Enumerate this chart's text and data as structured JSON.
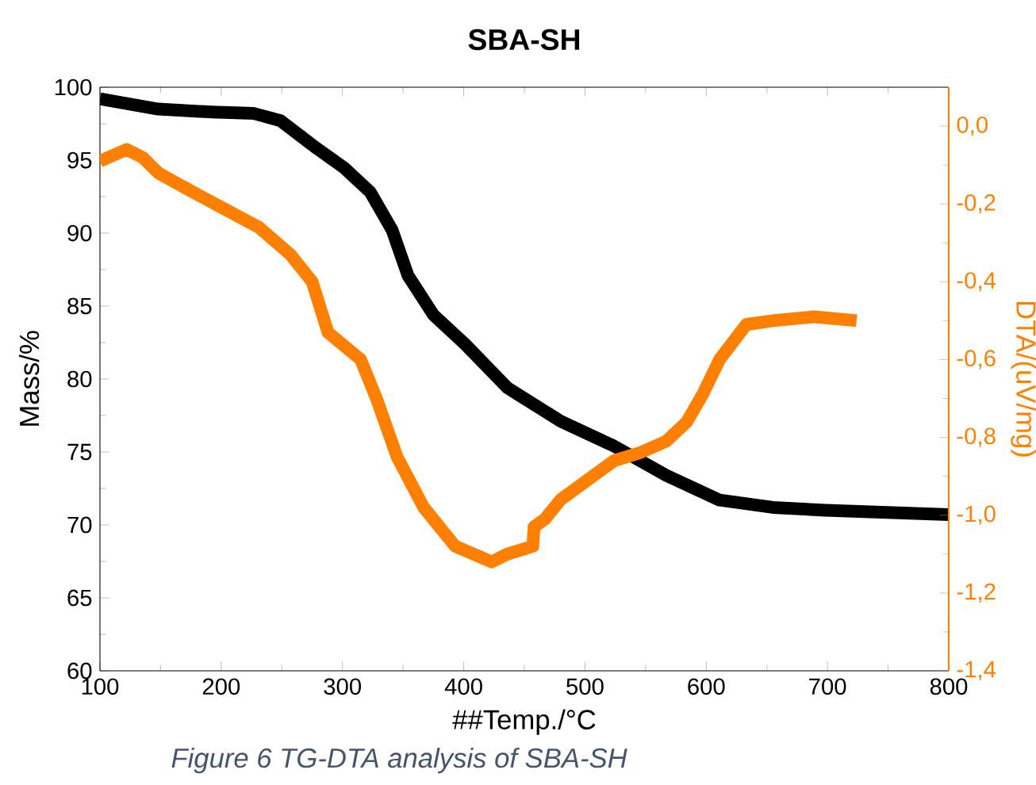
{
  "chart_data": {
    "type": "line",
    "title": "SBA-SH",
    "xlabel": "##Temp./°C",
    "ylabel": "Mass/%",
    "y2label": "DTA/(uV/mg)",
    "annotations": [
      "Figure 6 TG-DTA analysis of SBA-SH"
    ],
    "xlim": [
      100,
      800
    ],
    "xticks": [
      100,
      200,
      300,
      400,
      500,
      600,
      700,
      800
    ],
    "ylim": [
      60,
      100
    ],
    "yticks": [
      60,
      65,
      70,
      75,
      80,
      85,
      90,
      95,
      100
    ],
    "y2lim": [
      -1.4,
      0.1
    ],
    "y2ticks": [
      {
        "value": 0,
        "label": "0,0"
      },
      {
        "value": -0.2,
        "label": "-0,2"
      },
      {
        "value": -0.4,
        "label": "-0,4"
      },
      {
        "value": -0.6,
        "label": "-0,6"
      },
      {
        "value": -0.8,
        "label": "-0,8"
      },
      {
        "value": -1.0,
        "label": "-1,0"
      },
      {
        "value": -1.2,
        "label": "-1,2"
      },
      {
        "value": -1.4,
        "label": "-1,4"
      }
    ],
    "series": [
      {
        "color": "#000000",
        "x": [
          100,
          148,
          192,
          227,
          249,
          279,
          301,
          323,
          341,
          354,
          375,
          401,
          436,
          480,
          524,
          567,
          611,
          655,
          698,
          800
        ],
        "values": [
          99.2,
          98.5,
          98.3,
          98.2,
          97.7,
          95.8,
          94.5,
          92.8,
          90.2,
          87.1,
          84.4,
          82.4,
          79.4,
          77.1,
          75.4,
          73.4,
          71.7,
          71.2,
          71.0,
          70.7
        ]
      },
      {
        "color": "#ff7f00",
        "axis": "y2",
        "x": [
          100,
          122,
          135,
          148,
          171,
          201,
          231,
          257,
          275,
          288,
          315,
          328,
          345,
          367,
          393,
          423,
          436,
          457,
          458,
          467,
          480,
          502,
          524,
          545,
          567,
          584,
          597,
          611,
          633,
          655,
          689,
          724
        ],
        "values": [
          -0.09,
          -0.06,
          -0.08,
          -0.12,
          -0.16,
          -0.21,
          -0.26,
          -0.33,
          -0.4,
          -0.53,
          -0.6,
          -0.7,
          -0.85,
          -0.98,
          -1.08,
          -1.12,
          -1.1,
          -1.08,
          -1.03,
          -1.01,
          -0.96,
          -0.91,
          -0.86,
          -0.84,
          -0.81,
          -0.76,
          -0.69,
          -0.6,
          -0.51,
          -0.5,
          -0.49,
          -0.5
        ]
      }
    ]
  }
}
